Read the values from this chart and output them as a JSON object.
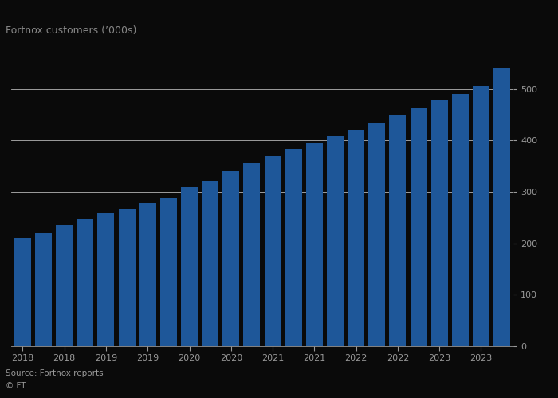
{
  "title": "Fortnox customers (’000s)",
  "bar_color": "#1e5799",
  "background_color": "#0a0a0a",
  "plot_bg_color": "#0a0a0a",
  "source_text": "Source: Fortnox reports",
  "ft_text": "© FT",
  "grid_color": "#ffffff",
  "text_color": "#999999",
  "title_color": "#888888",
  "values": [
    210,
    220,
    235,
    248,
    258,
    268,
    278,
    288,
    310,
    320,
    340,
    355,
    370,
    383,
    395,
    408,
    420,
    435,
    450,
    462,
    478,
    490,
    505,
    540
  ],
  "tick_labels": [
    "2018",
    "2018",
    "2019",
    "2019",
    "2020",
    "2020",
    "2021",
    "2021",
    "2022",
    "2022",
    "2023",
    "2023"
  ],
  "tick_positions": [
    0,
    2,
    4,
    6,
    8,
    10,
    12,
    14,
    16,
    18,
    20,
    22
  ],
  "ylim": [
    0,
    580
  ],
  "yticks": [
    0,
    100,
    200,
    300,
    400,
    500
  ],
  "grid_yticks": [
    300,
    400,
    500
  ],
  "title_fontsize": 9,
  "tick_fontsize": 8,
  "source_fontsize": 7.5
}
